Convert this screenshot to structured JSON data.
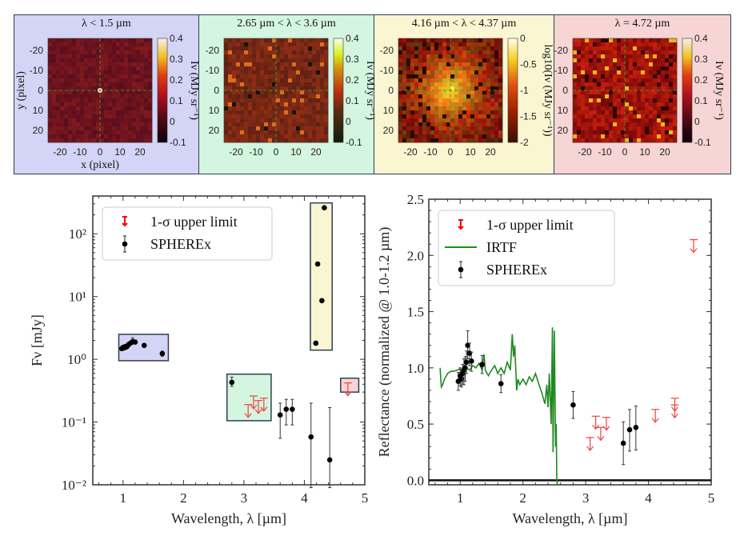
{
  "colors": {
    "panel_blue": "#d4d4f6",
    "panel_green": "#d4f5e0",
    "panel_yellow": "#fbf6d2",
    "panel_pink": "#f8d5d5",
    "upper_limit": "#f04040",
    "sphere_point": "#000000",
    "irtf_line": "#1e8a1e"
  },
  "panels": [
    {
      "title": "λ < 1.5 µm",
      "bg": "#d4d4f6",
      "cbar_label": "Iν (MJy sr⁻¹)",
      "cbar_ticks": [
        "0.4",
        "0.3",
        "0.2",
        "0.1",
        "0",
        "-0.1"
      ],
      "cmap": "hot",
      "xlabel": "x (pixel)",
      "ylabel": "y (pixel)"
    },
    {
      "title": "2.65 µm < λ < 3.6 µm",
      "bg": "#d4f5e0",
      "cbar_label": "Iν (MJy sr⁻¹)",
      "cbar_ticks": [
        "0.4",
        "0.3",
        "0.2",
        "0.1",
        "0",
        "-0.1"
      ],
      "cmap": "olive",
      "xlabel": "",
      "ylabel": ""
    },
    {
      "title": "4.16 µm < λ < 4.37 µm",
      "bg": "#fbf6d2",
      "cbar_label": "log10(Iν (MJy sr⁻¹))",
      "cbar_ticks": [
        "0",
        "-0.5",
        "-1",
        "-1.5",
        "-2"
      ],
      "cmap": "afmhot",
      "xlabel": "",
      "ylabel": ""
    },
    {
      "title": "λ = 4.72 µm",
      "bg": "#f8d5d5",
      "cbar_label": "Iν (MJy sr⁻¹)",
      "cbar_ticks": [
        "0.4",
        "0.3",
        "0.2",
        "0.1",
        "0",
        "-0.1"
      ],
      "cmap": "hot",
      "xlabel": "",
      "ylabel": ""
    }
  ],
  "image_ticks": {
    "x": [
      "-20",
      "-10",
      "0",
      "10",
      "20"
    ],
    "y": [
      "-20",
      "-10",
      "0",
      "10",
      "20"
    ]
  },
  "chart_data": [
    {
      "type": "scatter",
      "title": "",
      "xlabel": "Wavelength, λ [µm]",
      "ylabel": "Fν [mJy]",
      "xlim": [
        0.5,
        5
      ],
      "ylim": [
        0.01,
        400
      ],
      "yscale": "log",
      "xticks": [
        "1",
        "2",
        "3",
        "4",
        "5"
      ],
      "yticks": [
        "10⁻²",
        "10⁻¹",
        "10⁰",
        "10¹",
        "10²"
      ],
      "legend": {
        "placement": "top-left",
        "entries": [
          "1-σ upper limit",
          "SPHEREx"
        ]
      },
      "series": [
        {
          "name": "SPHEREx",
          "points": [
            {
              "x": 0.98,
              "y": 1.48,
              "lo": 1.4,
              "hi": 1.58
            },
            {
              "x": 1.0,
              "y": 1.55,
              "lo": 1.46,
              "hi": 1.64
            },
            {
              "x": 1.02,
              "y": 1.52,
              "lo": 1.43,
              "hi": 1.62
            },
            {
              "x": 1.04,
              "y": 1.6,
              "lo": 1.51,
              "hi": 1.7
            },
            {
              "x": 1.06,
              "y": 1.58,
              "lo": 1.49,
              "hi": 1.68
            },
            {
              "x": 1.08,
              "y": 1.66,
              "lo": 1.56,
              "hi": 1.76
            },
            {
              "x": 1.1,
              "y": 1.75,
              "lo": 1.65,
              "hi": 1.86
            },
            {
              "x": 1.13,
              "y": 1.82,
              "lo": 1.72,
              "hi": 1.95
            },
            {
              "x": 1.16,
              "y": 1.92,
              "lo": 1.8,
              "hi": 2.2
            },
            {
              "x": 1.2,
              "y": 1.88,
              "lo": 1.76,
              "hi": 2.02
            },
            {
              "x": 1.35,
              "y": 1.66,
              "lo": 1.56,
              "hi": 1.78
            },
            {
              "x": 1.65,
              "y": 1.23,
              "lo": 1.12,
              "hi": 1.35
            },
            {
              "x": 2.8,
              "y": 0.43,
              "lo": 0.37,
              "hi": 0.52
            },
            {
              "x": 3.6,
              "y": 0.13,
              "lo": 0.055,
              "hi": 0.2
            },
            {
              "x": 3.7,
              "y": 0.16,
              "lo": 0.09,
              "hi": 0.23
            },
            {
              "x": 3.8,
              "y": 0.16,
              "lo": 0.09,
              "hi": 0.23
            },
            {
              "x": 4.11,
              "y": 0.058,
              "lo": 0.009,
              "hi": 0.2
            },
            {
              "x": 4.19,
              "y": 1.8,
              "lo": 1.7,
              "hi": 1.95
            },
            {
              "x": 4.22,
              "y": 33,
              "lo": 32,
              "hi": 34
            },
            {
              "x": 4.29,
              "y": 8.6,
              "lo": 8.3,
              "hi": 8.9
            },
            {
              "x": 4.33,
              "y": 260,
              "lo": 255,
              "hi": 265
            },
            {
              "x": 4.42,
              "y": 0.025,
              "lo": 0.009,
              "hi": 0.17
            }
          ]
        },
        {
          "name": "1-σ upper limit",
          "points": [
            {
              "x": 3.07,
              "y": 0.19
            },
            {
              "x": 3.16,
              "y": 0.26
            },
            {
              "x": 3.24,
              "y": 0.22
            },
            {
              "x": 3.33,
              "y": 0.24
            },
            {
              "x": 4.72,
              "y": 0.42
            }
          ]
        }
      ],
      "highlight_boxes": [
        {
          "color": "#d4d4f6",
          "x": [
            0.93,
            1.75
          ],
          "y": [
            0.95,
            2.5
          ]
        },
        {
          "color": "#d4f5e0",
          "x": [
            2.72,
            3.45
          ],
          "y": [
            0.105,
            0.58
          ]
        },
        {
          "color": "#fbf6d2",
          "x": [
            4.1,
            4.46
          ],
          "y": [
            1.4,
            310
          ]
        },
        {
          "color": "#f8d5d5",
          "x": [
            4.6,
            4.9
          ],
          "y": [
            0.3,
            0.5
          ]
        }
      ]
    },
    {
      "type": "line",
      "title": "",
      "xlabel": "Wavelength, λ [µm]",
      "ylabel": "Reflectance (normalized @ 1.0-1.2 µm)",
      "xlim": [
        0.5,
        5
      ],
      "ylim": [
        -0.04,
        2.5
      ],
      "xticks": [
        "1",
        "2",
        "3",
        "4",
        "5"
      ],
      "yticks": [
        "0.0",
        "0.5",
        "1.0",
        "1.5",
        "2.0",
        "2.5"
      ],
      "legend": {
        "placement": "top-left",
        "entries": [
          "1-σ upper limit",
          "IRTF",
          "SPHEREx"
        ]
      },
      "series": [
        {
          "name": "IRTF",
          "x": [
            0.68,
            0.7,
            0.72,
            0.75,
            0.8,
            0.85,
            0.9,
            0.95,
            1.0,
            1.05,
            1.1,
            1.15,
            1.2,
            1.25,
            1.3,
            1.35,
            1.38,
            1.4,
            1.45,
            1.5,
            1.55,
            1.6,
            1.65,
            1.7,
            1.75,
            1.8,
            1.83,
            1.85,
            1.87,
            1.9,
            1.92,
            1.95,
            2.0,
            2.05,
            2.1,
            2.15,
            2.2,
            2.25,
            2.3,
            2.35,
            2.38,
            2.4,
            2.42,
            2.45,
            2.47,
            2.48,
            2.5,
            2.51,
            2.52,
            2.53,
            2.54,
            2.55,
            2.56
          ],
          "y": [
            1.0,
            0.83,
            0.85,
            0.9,
            0.95,
            0.97,
            0.97,
            0.98,
            0.99,
            0.97,
            1.0,
            0.98,
            1.02,
            1.0,
            1.04,
            0.98,
            1.12,
            0.98,
            0.93,
            0.98,
            1.02,
            0.95,
            1.0,
            0.95,
            1.05,
            0.98,
            1.3,
            1.1,
            1.2,
            0.8,
            0.9,
            0.85,
            0.9,
            0.85,
            0.92,
            0.88,
            0.95,
            0.86,
            0.78,
            0.68,
            0.85,
            0.65,
            0.95,
            0.5,
            1.36,
            0.25,
            1.33,
            0.8,
            0.3,
            0.5,
            0.0,
            -0.04,
            -0.04
          ]
        },
        {
          "name": "SPHEREx",
          "points": [
            {
              "x": 0.97,
              "y": 0.88,
              "lo": 0.8,
              "hi": 0.96
            },
            {
              "x": 1.0,
              "y": 0.93,
              "lo": 0.84,
              "hi": 1.0
            },
            {
              "x": 1.02,
              "y": 0.9,
              "lo": 0.83,
              "hi": 0.98
            },
            {
              "x": 1.04,
              "y": 0.95,
              "lo": 0.85,
              "hi": 1.03
            },
            {
              "x": 1.06,
              "y": 0.98,
              "lo": 0.85,
              "hi": 1.08
            },
            {
              "x": 1.08,
              "y": 1.0,
              "lo": 0.88,
              "hi": 1.1
            },
            {
              "x": 1.1,
              "y": 1.05,
              "lo": 0.95,
              "hi": 1.15
            },
            {
              "x": 1.12,
              "y": 1.2,
              "lo": 1.08,
              "hi": 1.33
            },
            {
              "x": 1.15,
              "y": 1.13,
              "lo": 1.02,
              "hi": 1.22
            },
            {
              "x": 1.18,
              "y": 1.06,
              "lo": 0.97,
              "hi": 1.14
            },
            {
              "x": 1.35,
              "y": 1.03,
              "lo": 0.95,
              "hi": 1.11
            },
            {
              "x": 1.65,
              "y": 0.86,
              "lo": 0.78,
              "hi": 0.94
            },
            {
              "x": 2.8,
              "y": 0.67,
              "lo": 0.55,
              "hi": 0.79
            },
            {
              "x": 3.6,
              "y": 0.33,
              "lo": 0.14,
              "hi": 0.52
            },
            {
              "x": 3.7,
              "y": 0.45,
              "lo": 0.26,
              "hi": 0.63
            },
            {
              "x": 3.8,
              "y": 0.47,
              "lo": 0.27,
              "hi": 0.66
            }
          ]
        },
        {
          "name": "1-σ upper limit",
          "points": [
            {
              "x": 3.07,
              "y": 0.38
            },
            {
              "x": 3.16,
              "y": 0.57
            },
            {
              "x": 3.24,
              "y": 0.47
            },
            {
              "x": 3.33,
              "y": 0.56
            },
            {
              "x": 4.11,
              "y": 0.63
            },
            {
              "x": 4.42,
              "y": 0.67
            },
            {
              "x": 4.42,
              "y": 0.73
            },
            {
              "x": 4.72,
              "y": 2.14
            }
          ]
        }
      ]
    }
  ]
}
